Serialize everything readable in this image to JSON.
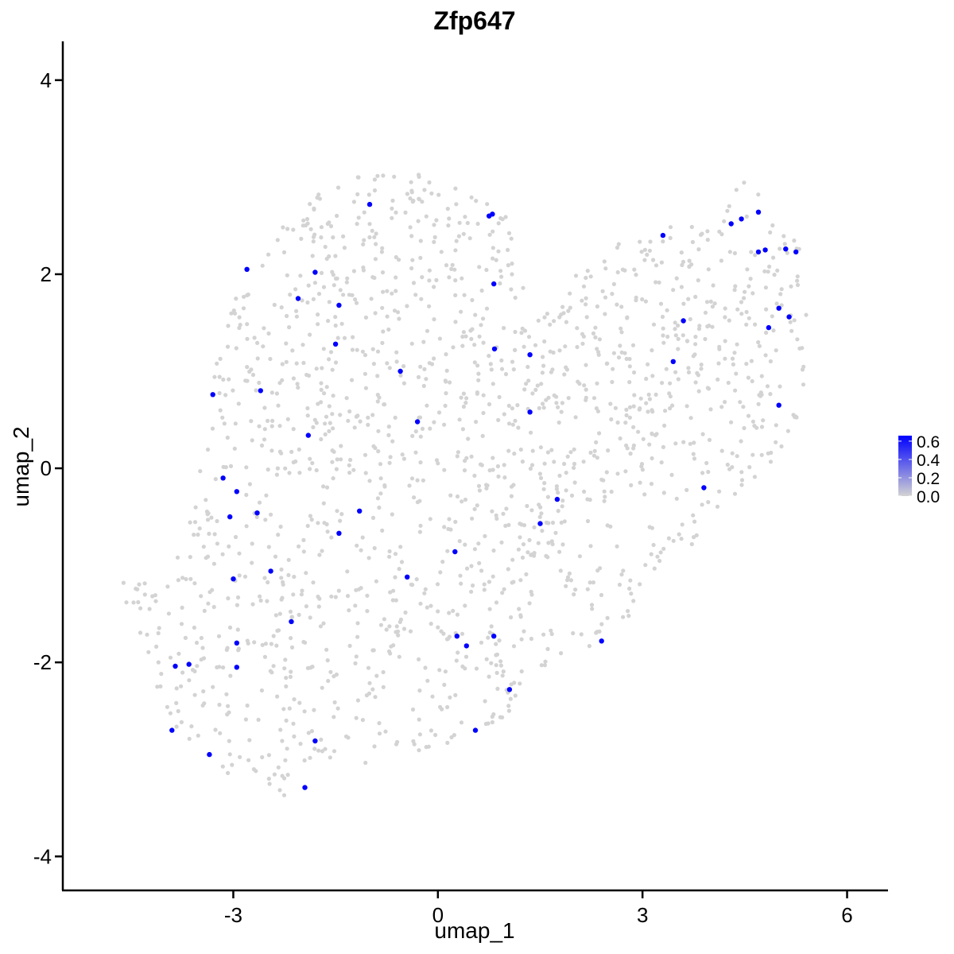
{
  "chart_data": {
    "type": "scatter",
    "title": "Zfp647",
    "xlabel": "umap_1",
    "ylabel": "umap_2",
    "xlim": [
      -5.5,
      6.6
    ],
    "ylim": [
      -4.35,
      4.4
    ],
    "xticks": [
      -3,
      0,
      3,
      6
    ],
    "yticks": [
      -4,
      -2,
      0,
      2,
      4
    ],
    "xtick_labels": [
      "-3",
      "0",
      "3",
      "6"
    ],
    "ytick_labels": [
      "-4",
      "-2",
      "0",
      "2",
      "4"
    ],
    "grid": false,
    "legend": {
      "placement": "right",
      "kind": "colorbar",
      "range": [
        0.0,
        0.66
      ],
      "ticks": [
        0.0,
        0.2,
        0.4,
        0.6
      ],
      "tick_labels": [
        "0.0",
        "0.2",
        "0.4",
        "0.6"
      ],
      "color_low": "#d3d3d3",
      "color_high": "#0000ff"
    },
    "background_color": "#d3d3d3",
    "background_region": [
      [
        -4.7,
        -1.2
      ],
      [
        -4.3,
        -1.8
      ],
      [
        -4.1,
        -2.3
      ],
      [
        -3.9,
        -2.6
      ],
      [
        -3.6,
        -3.0
      ],
      [
        -3.0,
        -3.2
      ],
      [
        -2.5,
        -3.35
      ],
      [
        -2.0,
        -3.45
      ],
      [
        -1.4,
        -3.2
      ],
      [
        -0.9,
        -3.0
      ],
      [
        -0.2,
        -2.9
      ],
      [
        0.5,
        -2.8
      ],
      [
        1.1,
        -2.5
      ],
      [
        1.6,
        -2.0
      ],
      [
        2.2,
        -1.85
      ],
      [
        2.7,
        -1.6
      ],
      [
        3.2,
        -1.2
      ],
      [
        3.7,
        -0.9
      ],
      [
        4.2,
        -0.4
      ],
      [
        4.8,
        0.0
      ],
      [
        5.2,
        0.3
      ],
      [
        5.4,
        0.8
      ],
      [
        5.4,
        1.6
      ],
      [
        5.35,
        2.3
      ],
      [
        5.0,
        2.55
      ],
      [
        4.5,
        3.0
      ],
      [
        4.0,
        2.5
      ],
      [
        3.3,
        2.55
      ],
      [
        2.6,
        2.3
      ],
      [
        2.0,
        2.0
      ],
      [
        1.5,
        1.55
      ],
      [
        1.2,
        2.0
      ],
      [
        1.0,
        2.6
      ],
      [
        0.3,
        2.95
      ],
      [
        -0.3,
        3.05
      ],
      [
        -1.2,
        3.0
      ],
      [
        -1.9,
        2.8
      ],
      [
        -2.6,
        2.4
      ],
      [
        -3.0,
        1.8
      ],
      [
        -3.3,
        1.0
      ],
      [
        -3.5,
        0.0
      ],
      [
        -3.8,
        -0.8
      ],
      [
        -4.1,
        -1.1
      ],
      [
        -4.7,
        -1.15
      ]
    ],
    "n_background": 1650,
    "expressing_cells": [
      {
        "x": -1.0,
        "y": 2.72,
        "value": 0.66
      },
      {
        "x": 0.75,
        "y": 2.6,
        "value": 0.66
      },
      {
        "x": 0.8,
        "y": 2.62,
        "value": 0.66
      },
      {
        "x": -2.8,
        "y": 2.05,
        "value": 0.66
      },
      {
        "x": -1.8,
        "y": 2.02,
        "value": 0.66
      },
      {
        "x": 0.82,
        "y": 1.9,
        "value": 0.66
      },
      {
        "x": -2.05,
        "y": 1.75,
        "value": 0.66
      },
      {
        "x": -1.45,
        "y": 1.68,
        "value": 0.66
      },
      {
        "x": -1.5,
        "y": 1.28,
        "value": 0.66
      },
      {
        "x": 0.83,
        "y": 1.23,
        "value": 0.66
      },
      {
        "x": 1.35,
        "y": 1.17,
        "value": 0.66
      },
      {
        "x": -0.55,
        "y": 1.0,
        "value": 0.66
      },
      {
        "x": -3.3,
        "y": 0.76,
        "value": 0.66
      },
      {
        "x": -2.6,
        "y": 0.8,
        "value": 0.66
      },
      {
        "x": 1.35,
        "y": 0.58,
        "value": 0.66
      },
      {
        "x": -0.3,
        "y": 0.48,
        "value": 0.66
      },
      {
        "x": -1.9,
        "y": 0.34,
        "value": 0.66
      },
      {
        "x": -3.15,
        "y": -0.1,
        "value": 0.66
      },
      {
        "x": -2.95,
        "y": -0.24,
        "value": 0.66
      },
      {
        "x": -3.05,
        "y": -0.5,
        "value": 0.66
      },
      {
        "x": -2.65,
        "y": -0.46,
        "value": 0.66
      },
      {
        "x": -1.15,
        "y": -0.44,
        "value": 0.66
      },
      {
        "x": -1.45,
        "y": -0.67,
        "value": 0.66
      },
      {
        "x": 1.75,
        "y": -0.32,
        "value": 0.66
      },
      {
        "x": 1.5,
        "y": -0.57,
        "value": 0.66
      },
      {
        "x": 0.25,
        "y": -0.86,
        "value": 0.66
      },
      {
        "x": -2.45,
        "y": -1.06,
        "value": 0.66
      },
      {
        "x": -0.45,
        "y": -1.12,
        "value": 0.66
      },
      {
        "x": -3.0,
        "y": -1.14,
        "value": 0.66
      },
      {
        "x": -2.15,
        "y": -1.58,
        "value": 0.66
      },
      {
        "x": 0.28,
        "y": -1.73,
        "value": 0.66
      },
      {
        "x": 0.82,
        "y": -1.73,
        "value": 0.66
      },
      {
        "x": 0.42,
        "y": -1.83,
        "value": 0.66
      },
      {
        "x": 2.4,
        "y": -1.78,
        "value": 0.66
      },
      {
        "x": -2.95,
        "y": -1.8,
        "value": 0.66
      },
      {
        "x": -3.85,
        "y": -2.04,
        "value": 0.66
      },
      {
        "x": -3.65,
        "y": -2.02,
        "value": 0.66
      },
      {
        "x": -2.95,
        "y": -2.05,
        "value": 0.66
      },
      {
        "x": 1.05,
        "y": -2.28,
        "value": 0.66
      },
      {
        "x": -3.9,
        "y": -2.7,
        "value": 0.66
      },
      {
        "x": 0.55,
        "y": -2.7,
        "value": 0.66
      },
      {
        "x": -1.8,
        "y": -2.81,
        "value": 0.66
      },
      {
        "x": -3.35,
        "y": -2.95,
        "value": 0.66
      },
      {
        "x": -1.95,
        "y": -3.29,
        "value": 0.66
      },
      {
        "x": 3.3,
        "y": 2.4,
        "value": 0.66
      },
      {
        "x": 4.3,
        "y": 2.52,
        "value": 0.66
      },
      {
        "x": 4.45,
        "y": 2.57,
        "value": 0.66
      },
      {
        "x": 4.7,
        "y": 2.64,
        "value": 0.66
      },
      {
        "x": 4.7,
        "y": 2.23,
        "value": 0.66
      },
      {
        "x": 4.8,
        "y": 2.25,
        "value": 0.66
      },
      {
        "x": 5.1,
        "y": 2.26,
        "value": 0.66
      },
      {
        "x": 5.25,
        "y": 2.23,
        "value": 0.66
      },
      {
        "x": 5.0,
        "y": 1.65,
        "value": 0.66
      },
      {
        "x": 5.15,
        "y": 1.56,
        "value": 0.66
      },
      {
        "x": 4.85,
        "y": 1.45,
        "value": 0.66
      },
      {
        "x": 3.6,
        "y": 1.52,
        "value": 0.66
      },
      {
        "x": 3.45,
        "y": 1.1,
        "value": 0.66
      },
      {
        "x": 5.0,
        "y": 0.65,
        "value": 0.66
      },
      {
        "x": 3.9,
        "y": -0.2,
        "value": 0.66
      }
    ]
  }
}
